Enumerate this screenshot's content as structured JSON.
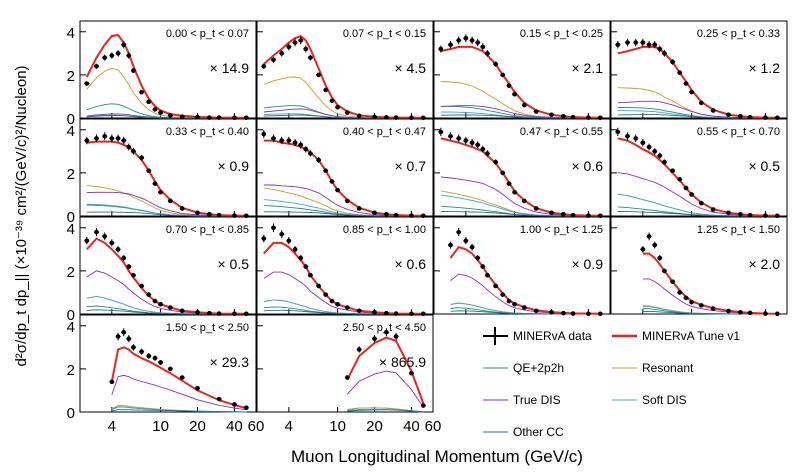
{
  "figure": {
    "ylabel": "d²σ/dp_t dp_|| (×10⁻³⁹ cm²/(GeV/c)²/Nucleon)",
    "xlabel": "Muon Longitudinal Momentum (GeV/c)"
  },
  "colors": {
    "data": "#000000",
    "tune": "#e8251c",
    "qe2p2h": "#1f8f7f",
    "resonant": "#d49a1c",
    "truedis": "#8a2bc6",
    "softdis": "#3aa6d6",
    "othercc": "#1f6fa0"
  },
  "legend": {
    "data": "MINERvA data",
    "tune": "MINERvA Tune v1",
    "qe2p2h": "QE+2p2h",
    "resonant": "Resonant",
    "truedis": "True DIS",
    "softdis": "Soft DIS",
    "othercc": "Other CC"
  },
  "chart_data": {
    "type": "line",
    "xlabel": "Muon Longitudinal Momentum (GeV/c)",
    "ylabel": "d²σ/dp_t dp_|| (×10⁻³⁹ cm²/(GeV/c)²/Nucleon)",
    "ylim": [
      0,
      4.5
    ],
    "x_ticks": [
      "4",
      "10",
      "20",
      "40",
      "60"
    ],
    "y_ticks": [
      "0",
      "2",
      "4"
    ],
    "panels": [
      {
        "label": "0.00 < p_t < 0.07",
        "scale": "× 14.9",
        "data_x": [
          2.5,
          3,
          3.5,
          4,
          4.5,
          5,
          5.5,
          6,
          7,
          8,
          9,
          10,
          12,
          15,
          20,
          25,
          30,
          40,
          50
        ],
        "data_y": [
          1.6,
          2.4,
          2.8,
          2.9,
          3.0,
          3.4,
          2.9,
          2.2,
          1.2,
          0.75,
          0.4,
          0.25,
          0.12,
          0.06,
          0.04,
          0.02,
          0.02,
          0.01,
          0.01
        ],
        "tune_y": [
          1.9,
          2.8,
          3.4,
          3.8,
          3.85,
          3.5,
          3.0,
          2.4,
          1.5,
          0.9,
          0.55,
          0.35,
          0.18,
          0.1,
          0.05,
          0.03,
          0.02,
          0.01,
          0.01
        ]
      },
      {
        "label": "0.07 < p_t < 0.15",
        "scale": "× 4.5",
        "data_x": [
          2.5,
          3,
          3.5,
          4,
          4.5,
          5,
          5.5,
          6,
          7,
          8,
          9,
          10,
          12,
          15,
          20,
          25,
          30,
          40,
          50
        ],
        "data_y": [
          2.4,
          2.7,
          3.0,
          3.3,
          3.5,
          3.6,
          3.2,
          2.8,
          2.0,
          1.3,
          0.8,
          0.5,
          0.25,
          0.1,
          0.05,
          0.03,
          0.02,
          0.01,
          0.01
        ],
        "tune_y": [
          2.5,
          2.9,
          3.2,
          3.5,
          3.7,
          3.8,
          3.6,
          3.2,
          2.3,
          1.5,
          0.95,
          0.6,
          0.3,
          0.12,
          0.06,
          0.03,
          0.02,
          0.01,
          0.01
        ]
      },
      {
        "label": "0.15 < p_t < 0.25",
        "scale": "× 2.1",
        "data_x": [
          2.5,
          3,
          3.5,
          4,
          4.5,
          5,
          5.5,
          6,
          7,
          8,
          9,
          10,
          12,
          15,
          20,
          25,
          30,
          40,
          50
        ],
        "data_y": [
          3.2,
          3.4,
          3.6,
          3.7,
          3.6,
          3.5,
          3.3,
          3.0,
          2.5,
          2.0,
          1.5,
          1.1,
          0.6,
          0.3,
          0.15,
          0.08,
          0.04,
          0.02,
          0.01
        ],
        "tune_y": [
          3.1,
          3.2,
          3.3,
          3.3,
          3.3,
          3.2,
          3.1,
          2.9,
          2.5,
          2.0,
          1.6,
          1.2,
          0.7,
          0.35,
          0.15,
          0.08,
          0.04,
          0.02,
          0.01
        ]
      },
      {
        "label": "0.25 < p_t < 0.33",
        "scale": "× 1.2",
        "data_x": [
          2.5,
          3,
          3.5,
          4,
          4.5,
          5,
          5.5,
          6,
          7,
          8,
          9,
          10,
          12,
          15,
          20,
          25,
          30,
          40,
          50
        ],
        "data_y": [
          3.4,
          3.5,
          3.5,
          3.5,
          3.4,
          3.4,
          3.2,
          3.0,
          2.6,
          2.1,
          1.6,
          1.2,
          0.7,
          0.35,
          0.15,
          0.08,
          0.04,
          0.02,
          0.01
        ],
        "tune_y": [
          3.0,
          3.1,
          3.2,
          3.3,
          3.3,
          3.3,
          3.2,
          3.0,
          2.6,
          2.1,
          1.7,
          1.3,
          0.75,
          0.38,
          0.16,
          0.08,
          0.04,
          0.02,
          0.01
        ]
      },
      {
        "label": "0.33 < p_t < 0.40",
        "scale": "× 0.9",
        "data_x": [
          2.5,
          3,
          3.5,
          4,
          4.5,
          5,
          5.5,
          6,
          7,
          8,
          9,
          10,
          12,
          15,
          20,
          25,
          30,
          40,
          50
        ],
        "data_y": [
          3.5,
          3.6,
          3.7,
          3.6,
          3.6,
          3.5,
          3.2,
          3.0,
          2.7,
          2.1,
          1.5,
          1.1,
          0.7,
          0.35,
          0.15,
          0.08,
          0.04,
          0.02,
          0.01
        ],
        "tune_y": [
          3.4,
          3.45,
          3.45,
          3.45,
          3.4,
          3.3,
          3.2,
          3.0,
          2.6,
          2.1,
          1.6,
          1.2,
          0.75,
          0.38,
          0.16,
          0.08,
          0.04,
          0.02,
          0.01
        ]
      },
      {
        "label": "0.40 < p_t < 0.47",
        "scale": "× 0.7",
        "data_x": [
          2.5,
          3,
          3.5,
          4,
          4.5,
          5,
          5.5,
          6,
          7,
          8,
          9,
          10,
          12,
          15,
          20,
          25,
          30,
          40,
          50
        ],
        "data_y": [
          3.8,
          3.6,
          3.5,
          3.5,
          3.4,
          3.3,
          3.1,
          2.9,
          2.6,
          2.1,
          1.6,
          1.2,
          0.7,
          0.35,
          0.15,
          0.08,
          0.04,
          0.02,
          0.01
        ],
        "tune_y": [
          3.5,
          3.5,
          3.4,
          3.35,
          3.3,
          3.2,
          3.1,
          2.95,
          2.6,
          2.1,
          1.6,
          1.2,
          0.75,
          0.38,
          0.16,
          0.08,
          0.04,
          0.02,
          0.01
        ]
      },
      {
        "label": "0.47 < p_t < 0.55",
        "scale": "× 0.6",
        "data_x": [
          2.5,
          3,
          3.5,
          4,
          4.5,
          5,
          5.5,
          6,
          7,
          8,
          9,
          10,
          12,
          15,
          20,
          25,
          30,
          40,
          50
        ],
        "data_y": [
          3.9,
          3.7,
          3.6,
          3.5,
          3.4,
          3.3,
          3.1,
          2.9,
          2.5,
          2.0,
          1.5,
          1.1,
          0.7,
          0.35,
          0.15,
          0.08,
          0.04,
          0.02,
          0.01
        ],
        "tune_y": [
          3.6,
          3.5,
          3.4,
          3.3,
          3.2,
          3.1,
          3.0,
          2.8,
          2.45,
          2.0,
          1.55,
          1.15,
          0.72,
          0.36,
          0.16,
          0.08,
          0.04,
          0.02,
          0.01
        ]
      },
      {
        "label": "0.55 < p_t < 0.70",
        "scale": "× 0.5",
        "data_x": [
          2.5,
          3,
          3.5,
          4,
          4.5,
          5,
          5.5,
          6,
          7,
          8,
          9,
          10,
          12,
          15,
          20,
          25,
          30,
          40,
          50
        ],
        "data_y": [
          3.9,
          3.7,
          3.6,
          3.4,
          3.2,
          3.0,
          2.8,
          2.5,
          2.1,
          1.7,
          1.3,
          1.0,
          0.6,
          0.3,
          0.15,
          0.08,
          0.04,
          0.02,
          0.01
        ],
        "tune_y": [
          3.6,
          3.5,
          3.3,
          3.1,
          2.95,
          2.8,
          2.6,
          2.4,
          2.0,
          1.65,
          1.3,
          1.0,
          0.62,
          0.32,
          0.15,
          0.08,
          0.04,
          0.02,
          0.01
        ]
      },
      {
        "label": "0.70 < p_t < 0.85",
        "scale": "× 0.5",
        "data_x": [
          2.5,
          3,
          3.5,
          4,
          4.5,
          5,
          5.5,
          6,
          7,
          8,
          9,
          10,
          12,
          15,
          20,
          25,
          30,
          40,
          50
        ],
        "data_y": [
          3.4,
          3.8,
          3.6,
          3.3,
          3.0,
          2.6,
          2.2,
          1.8,
          1.3,
          0.9,
          0.6,
          0.45,
          0.3,
          0.15,
          0.08,
          0.04,
          0.02,
          0.01,
          0.01
        ],
        "tune_y": [
          3.0,
          3.5,
          3.3,
          3.0,
          2.7,
          2.4,
          2.0,
          1.7,
          1.2,
          0.85,
          0.6,
          0.45,
          0.3,
          0.15,
          0.08,
          0.04,
          0.02,
          0.01,
          0.01
        ]
      },
      {
        "label": "0.85 < p_t < 1.00",
        "scale": "× 0.6",
        "data_x": [
          2.5,
          3,
          3.5,
          4,
          4.5,
          5,
          5.5,
          6,
          7,
          8,
          9,
          10,
          12,
          15,
          20,
          25,
          30,
          40,
          50
        ],
        "data_y": [
          3.5,
          4.0,
          3.7,
          3.4,
          3.0,
          2.6,
          2.2,
          1.8,
          1.3,
          0.9,
          0.6,
          0.45,
          0.3,
          0.15,
          0.08,
          0.04,
          0.02,
          0.01,
          0.01
        ],
        "tune_y": [
          2.8,
          3.3,
          3.3,
          3.1,
          2.8,
          2.5,
          2.2,
          1.8,
          1.3,
          0.9,
          0.6,
          0.45,
          0.3,
          0.15,
          0.08,
          0.04,
          0.02,
          0.01,
          0.01
        ]
      },
      {
        "label": "1.00 < p_t < 1.25",
        "scale": "× 0.9",
        "data_x": [
          3,
          3.5,
          4,
          4.5,
          5,
          5.5,
          6,
          7,
          8,
          9,
          10,
          12,
          15,
          20,
          25,
          30,
          40,
          50
        ],
        "data_y": [
          3.2,
          3.8,
          3.4,
          3.1,
          2.6,
          2.2,
          1.8,
          1.3,
          0.9,
          0.6,
          0.45,
          0.3,
          0.15,
          0.08,
          0.04,
          0.02,
          0.01,
          0.01
        ],
        "tune_y": [
          2.6,
          3.1,
          3.0,
          2.8,
          2.5,
          2.2,
          1.85,
          1.35,
          0.95,
          0.65,
          0.48,
          0.32,
          0.17,
          0.09,
          0.05,
          0.03,
          0.02,
          0.01
        ]
      },
      {
        "label": "1.25 < p_t < 1.50",
        "scale": "× 2.0",
        "data_x": [
          4,
          4.5,
          5,
          5.5,
          6,
          7,
          8,
          9,
          10,
          12,
          15,
          20,
          25,
          30,
          40,
          50
        ],
        "data_y": [
          3.0,
          3.6,
          3.2,
          2.6,
          2.0,
          1.5,
          1.0,
          0.75,
          0.55,
          0.4,
          0.25,
          0.14,
          0.08,
          0.05,
          0.02,
          0.01
        ],
        "tune_y": [
          2.8,
          2.8,
          2.6,
          2.3,
          2.0,
          1.5,
          1.1,
          0.8,
          0.6,
          0.42,
          0.27,
          0.15,
          0.09,
          0.05,
          0.02,
          0.01
        ]
      },
      {
        "label": "1.50 < p_t < 2.50",
        "scale": "× 29.3",
        "data_x": [
          4,
          4.5,
          5,
          5.5,
          6,
          7,
          8,
          9,
          10,
          12,
          15,
          20,
          30,
          40,
          50
        ],
        "data_y": [
          1.4,
          3.5,
          3.7,
          3.4,
          3.0,
          2.8,
          2.6,
          2.5,
          2.3,
          2.0,
          1.6,
          1.1,
          0.6,
          0.35,
          0.2
        ],
        "tune_y": [
          1.4,
          2.9,
          3.0,
          2.9,
          2.7,
          2.5,
          2.35,
          2.2,
          2.05,
          1.8,
          1.45,
          1.0,
          0.55,
          0.32,
          0.18
        ]
      },
      {
        "label": "2.50 < p_t < 4.50",
        "scale": "× 865.9",
        "data_x": [
          12,
          15,
          20,
          25,
          30,
          40,
          50
        ],
        "data_y": [
          1.6,
          2.9,
          3.4,
          3.7,
          3.5,
          1.8,
          0.3
        ],
        "tune_y": [
          1.5,
          2.6,
          3.2,
          3.45,
          3.3,
          1.9,
          0.4
        ]
      }
    ]
  }
}
